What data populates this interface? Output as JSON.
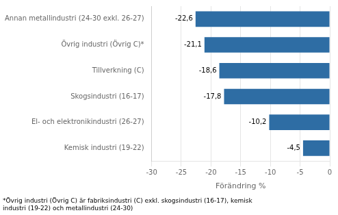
{
  "chart_data": {
    "type": "bar",
    "orientation": "horizontal",
    "categories": [
      "Annan metallindustri (24-30 exkl. 26-27)",
      "Övrig industri (Övrig C)*",
      "Tillverkning (C)",
      "Skogsindustri (16-17)",
      "El- och elektronikindustri (26-27)",
      "Kemisk industri (19-22)"
    ],
    "values": [
      -22.6,
      -21.1,
      -18.6,
      -17.8,
      -10.2,
      -4.5
    ],
    "value_labels": [
      "-22,6",
      "-21,1",
      "-18,6",
      "-17,8",
      "-10,2",
      "-4,5"
    ],
    "data_labels": true,
    "color": "#2e6da4",
    "xlabel": "Förändring %",
    "xlim": [
      -30,
      0
    ],
    "xticks": [
      -30,
      -25,
      -20,
      -15,
      -10,
      -5,
      0
    ],
    "grid": true,
    "annotations": [
      "*Övrig industri (Övrig C) är fabriksindustri (C) exkl. skogsindustri (16-17), kemisk\nindustri (19-22) och metallindustri (24-30)"
    ]
  }
}
